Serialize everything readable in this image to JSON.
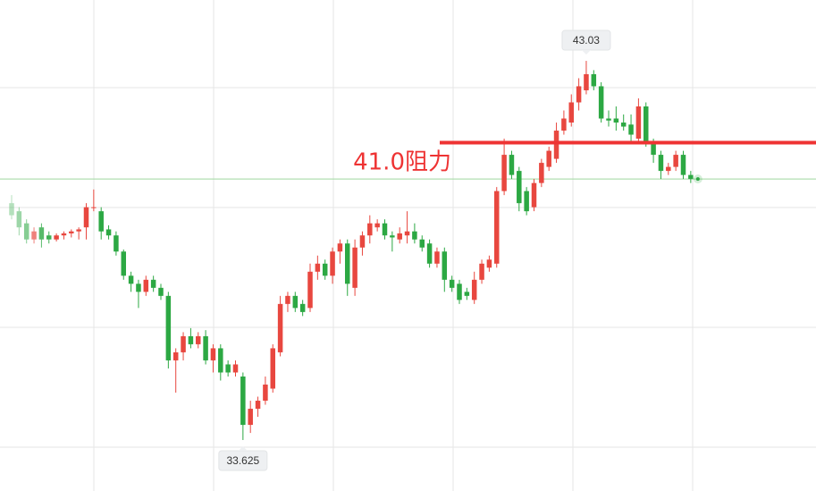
{
  "chart_data": {
    "type": "candlestick",
    "up_color": "#e8473f",
    "down_color": "#2ca843",
    "ylim": [
      32.36,
      44.54
    ],
    "open": [
      39.5,
      39.3,
      39.0,
      38.6,
      38.9,
      38.7,
      38.6,
      38.7,
      38.75,
      38.8,
      38.9,
      39.4,
      39.3,
      38.85,
      38.7,
      38.3,
      37.7,
      37.5,
      37.3,
      37.6,
      37.4,
      37.2,
      35.6,
      35.8,
      36.2,
      36.0,
      36.2,
      35.6,
      35.9,
      35.5,
      35.3,
      35.2,
      34.0,
      34.4,
      34.6,
      34.9,
      35.8,
      37.0,
      37.2,
      37.0,
      36.9,
      37.8,
      38.0,
      37.7,
      38.3,
      38.5,
      37.4,
      38.4,
      38.7,
      38.9,
      39.0,
      38.7,
      38.6,
      38.7,
      38.8,
      38.6,
      38.5,
      38.0,
      38.3,
      37.6,
      37.5,
      37.3,
      37.1,
      37.6,
      37.9,
      38.0,
      39.8,
      40.7,
      40.3,
      39.8,
      39.4,
      40.0,
      40.4,
      40.6,
      41.3,
      41.5,
      42.0,
      42.3,
      42.7,
      42.4,
      41.6,
      41.6,
      41.5,
      41.45,
      41.1,
      41.9,
      41.0,
      40.7,
      40.3,
      40.4,
      40.7,
      40.2
    ],
    "high": [
      39.7,
      39.4,
      39.1,
      38.9,
      39.0,
      38.8,
      38.75,
      38.8,
      38.85,
      38.9,
      39.5,
      39.84,
      39.4,
      38.95,
      38.8,
      38.35,
      37.8,
      37.6,
      37.7,
      37.7,
      37.5,
      37.3,
      35.9,
      36.3,
      36.4,
      36.3,
      36.35,
      36.0,
      36.0,
      35.6,
      35.6,
      35.3,
      34.6,
      34.7,
      35.2,
      36.0,
      37.2,
      37.3,
      37.3,
      37.1,
      38.0,
      38.2,
      38.1,
      38.4,
      38.6,
      38.6,
      38.6,
      38.8,
      39.2,
      39.1,
      39.1,
      38.8,
      38.9,
      39.3,
      39.0,
      38.7,
      38.6,
      38.4,
      38.4,
      37.7,
      37.6,
      37.4,
      37.8,
      38.1,
      38.2,
      39.9,
      41.1,
      40.8,
      40.4,
      39.9,
      40.1,
      40.6,
      40.9,
      41.5,
      41.8,
      42.2,
      42.6,
      43.03,
      42.8,
      42.5,
      41.8,
      41.9,
      41.7,
      41.7,
      42.1,
      42.0,
      41.1,
      40.8,
      40.5,
      40.8,
      40.8,
      40.3
    ],
    "low": [
      39.1,
      38.7,
      38.5,
      38.5,
      38.4,
      38.5,
      38.55,
      38.6,
      38.65,
      38.6,
      38.6,
      39.3,
      38.6,
      38.6,
      38.2,
      37.6,
      37.3,
      36.9,
      37.2,
      37.3,
      37.1,
      35.4,
      34.8,
      35.6,
      35.9,
      35.9,
      35.5,
      35.3,
      35.1,
      35.2,
      35.2,
      33.625,
      33.8,
      34.2,
      34.5,
      34.8,
      35.7,
      36.8,
      36.8,
      36.7,
      36.8,
      37.6,
      37.6,
      37.5,
      38.0,
      37.2,
      37.2,
      38.2,
      38.5,
      38.8,
      38.6,
      38.3,
      38.5,
      38.5,
      38.5,
      38.3,
      37.9,
      37.9,
      37.3,
      37.3,
      37.0,
      37.1,
      37.0,
      37.5,
      37.8,
      37.9,
      39.7,
      40.1,
      39.3,
      39.2,
      39.3,
      39.9,
      40.3,
      40.5,
      41.2,
      41.4,
      41.8,
      42.2,
      42.3,
      41.5,
      41.4,
      41.3,
      41.3,
      41.0,
      41.0,
      40.9,
      40.5,
      40.1,
      40.2,
      40.3,
      40.1,
      40.0
    ],
    "close": [
      39.2,
      38.9,
      38.6,
      38.8,
      38.6,
      38.6,
      38.7,
      38.75,
      38.8,
      38.85,
      39.4,
      39.4,
      38.8,
      38.7,
      38.3,
      37.7,
      37.5,
      37.3,
      37.6,
      37.4,
      37.2,
      35.6,
      35.8,
      36.2,
      36.0,
      36.2,
      35.6,
      35.9,
      35.3,
      35.3,
      35.5,
      34.0,
      34.4,
      34.6,
      35.0,
      35.9,
      37.0,
      37.2,
      36.9,
      36.8,
      37.8,
      38.0,
      37.7,
      38.3,
      38.5,
      37.5,
      38.4,
      38.7,
      39.0,
      39.0,
      38.7,
      38.65,
      38.75,
      38.8,
      38.6,
      38.4,
      38.0,
      38.3,
      37.6,
      37.4,
      37.1,
      37.2,
      37.6,
      38.0,
      38.1,
      39.8,
      40.7,
      40.2,
      39.5,
      39.3,
      40.0,
      40.5,
      40.8,
      41.3,
      41.6,
      42.0,
      42.4,
      42.7,
      42.4,
      41.6,
      41.55,
      41.5,
      41.4,
      41.2,
      41.9,
      41.0,
      40.7,
      40.3,
      40.4,
      40.7,
      40.2,
      40.1
    ],
    "last_price": 40.1,
    "resistance": {
      "value": 41.0,
      "label": "41.0阻力",
      "color": "#ee3333"
    },
    "high_tag": 43.03,
    "low_tag": 33.625
  }
}
